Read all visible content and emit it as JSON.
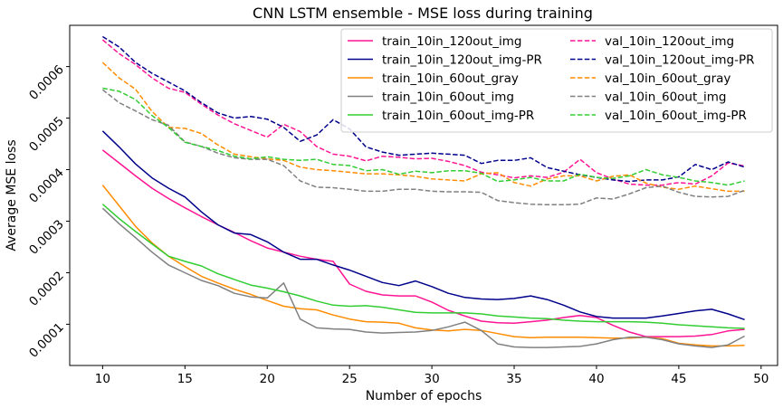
{
  "chart_data": {
    "type": "line",
    "title": "CNN LSTM ensemble - MSE loss during training",
    "xlabel": "Number of epochs",
    "ylabel": "Average MSE loss",
    "xlim": [
      8,
      51
    ],
    "ylim": [
      2e-05,
      0.00068
    ],
    "xticks": [
      10,
      15,
      20,
      25,
      30,
      35,
      40,
      45,
      50
    ],
    "yticks": [
      0.0001,
      0.0002,
      0.0003,
      0.0004,
      0.0005,
      0.0006
    ],
    "xtick_labels": [
      "10",
      "15",
      "20",
      "25",
      "30",
      "35",
      "40",
      "45",
      "50"
    ],
    "ytick_labels": [
      "0.0001",
      "0.0002",
      "0.0003",
      "0.0004",
      "0.0005",
      "0.0006"
    ],
    "grid": false,
    "legend": {
      "placement": "top-right",
      "columns": 2
    },
    "x": [
      10,
      11,
      12,
      13,
      14,
      15,
      16,
      17,
      18,
      19,
      20,
      21,
      22,
      23,
      24,
      25,
      26,
      27,
      28,
      29,
      30,
      31,
      32,
      33,
      34,
      35,
      36,
      37,
      38,
      39,
      40,
      41,
      42,
      43,
      44,
      45,
      46,
      47,
      48,
      49
    ],
    "series": [
      {
        "name": "train_10in_120out_img",
        "color": "#ff1493",
        "dash": "solid",
        "values": [
          0.000438,
          0.000413,
          0.000388,
          0.000364,
          0.000344,
          0.000326,
          0.000309,
          0.000293,
          0.000278,
          0.000262,
          0.000248,
          0.00024,
          0.000232,
          0.000226,
          0.000222,
          0.000178,
          0.000164,
          0.000157,
          0.000155,
          0.000155,
          0.000143,
          0.000127,
          0.000116,
          0.000106,
          0.000103,
          0.000102,
          0.000105,
          0.000108,
          0.000113,
          0.000117,
          0.000113,
          9.8e-05,
          8.5e-05,
          7.6e-05,
          7.6e-05,
          7.6e-05,
          7.7e-05,
          8e-05,
          8.7e-05,
          9e-05
        ]
      },
      {
        "name": "train_10in_120out_img-PR",
        "color": "#00008b",
        "dash": "solid",
        "values": [
          0.000475,
          0.000444,
          0.000411,
          0.000384,
          0.000364,
          0.000347,
          0.000318,
          0.000293,
          0.000277,
          0.000274,
          0.00026,
          0.00024,
          0.000226,
          0.000226,
          0.000215,
          0.000205,
          0.000193,
          0.000181,
          0.000175,
          0.000184,
          0.000173,
          0.00016,
          0.000152,
          0.000149,
          0.000148,
          0.00015,
          0.000155,
          0.000148,
          0.000137,
          0.000124,
          0.000115,
          0.000112,
          0.000112,
          0.000112,
          0.000116,
          0.000121,
          0.000126,
          0.000129,
          0.00012,
          0.000109
        ]
      },
      {
        "name": "train_10in_60out_gray",
        "color": "#ff8c00",
        "dash": "solid",
        "values": [
          0.00037,
          0.00033,
          0.00029,
          0.000258,
          0.000232,
          0.000212,
          0.000193,
          0.00018,
          0.000168,
          0.000158,
          0.000146,
          0.000135,
          0.00013,
          0.000128,
          0.000118,
          0.00011,
          0.000105,
          0.000104,
          0.000102,
          9.3e-05,
          8.9e-05,
          8.7e-05,
          9e-05,
          8.8e-05,
          8.2e-05,
          7.6e-05,
          7.4e-05,
          7.5e-05,
          7.5e-05,
          7.5e-05,
          7.4e-05,
          7.3e-05,
          7.3e-05,
          7.5e-05,
          7.2e-05,
          6.3e-05,
          6e-05,
          5.8e-05,
          5.8e-05,
          5.9e-05
        ]
      },
      {
        "name": "train_10in_60out_img",
        "color": "#808080",
        "dash": "solid",
        "values": [
          0.000325,
          0.000295,
          0.000268,
          0.00024,
          0.000215,
          0.0002,
          0.000185,
          0.000175,
          0.00016,
          0.000153,
          0.000151,
          0.00018,
          0.00011,
          9.3e-05,
          9.1e-05,
          9e-05,
          8.5e-05,
          8.3e-05,
          8.4e-05,
          8.5e-05,
          8.8e-05,
          9.5e-05,
          0.000104,
          8.8e-05,
          6.2e-05,
          5.6e-05,
          5.5e-05,
          5.5e-05,
          5.6e-05,
          5.7e-05,
          6.2e-05,
          7e-05,
          7.5e-05,
          7.5e-05,
          7e-05,
          6.2e-05,
          5.8e-05,
          5.5e-05,
          6e-05,
          7.7e-05
        ]
      },
      {
        "name": "train_10in_60out_img-PR",
        "color": "#32cd32",
        "dash": "solid",
        "values": [
          0.000333,
          0.000305,
          0.00028,
          0.000256,
          0.000232,
          0.000222,
          0.000213,
          0.000198,
          0.000187,
          0.000176,
          0.00017,
          0.000163,
          0.000155,
          0.000145,
          0.000137,
          0.000135,
          0.000136,
          0.000133,
          0.000128,
          0.000123,
          0.000122,
          0.000122,
          0.000122,
          0.00012,
          0.000116,
          0.000114,
          0.000112,
          0.000111,
          0.000108,
          0.000106,
          0.000105,
          0.000105,
          0.000105,
          0.000104,
          0.000102,
          9.9e-05,
          9.7e-05,
          9.5e-05,
          9.3e-05,
          9.2e-05
        ]
      },
      {
        "name": "val_10in_120out_img",
        "color": "#ff1493",
        "dash": "dashed",
        "values": [
          0.000652,
          0.000625,
          0.000604,
          0.000578,
          0.000558,
          0.00055,
          0.000527,
          0.000506,
          0.000489,
          0.000476,
          0.000463,
          0.000488,
          0.000474,
          0.000445,
          0.00043,
          0.000426,
          0.000417,
          0.000426,
          0.000424,
          0.000421,
          0.000422,
          0.000416,
          0.000408,
          0.000395,
          0.00039,
          0.000384,
          0.000388,
          0.000385,
          0.000395,
          0.00042,
          0.000394,
          0.000382,
          0.000372,
          0.00037,
          0.00037,
          0.000375,
          0.000372,
          0.000388,
          0.000413,
          0.000407
        ]
      },
      {
        "name": "val_10in_120out_img-PR",
        "color": "#00008b",
        "dash": "dashed",
        "values": [
          0.000658,
          0.000638,
          0.000608,
          0.000587,
          0.00057,
          0.000553,
          0.00053,
          0.00051,
          0.0005,
          0.000503,
          0.000498,
          0.000482,
          0.000455,
          0.000467,
          0.000497,
          0.000479,
          0.000444,
          0.000434,
          0.000428,
          0.00043,
          0.000432,
          0.00043,
          0.000428,
          0.000412,
          0.000418,
          0.000418,
          0.000423,
          0.000404,
          0.000397,
          0.00039,
          0.000385,
          0.00038,
          0.000377,
          0.00038,
          0.00038,
          0.000386,
          0.00041,
          0.0004,
          0.000415,
          0.000405
        ]
      },
      {
        "name": "val_10in_60out_gray",
        "color": "#ff8c00",
        "dash": "dashed",
        "values": [
          0.000608,
          0.000578,
          0.000556,
          0.000513,
          0.000482,
          0.00048,
          0.00047,
          0.000448,
          0.00043,
          0.000425,
          0.000421,
          0.000418,
          0.000405,
          0.0004,
          0.000398,
          0.000395,
          0.000392,
          0.000392,
          0.00039,
          0.000387,
          0.000382,
          0.00038,
          0.000378,
          0.000392,
          0.000394,
          0.000375,
          0.000368,
          0.000382,
          0.000388,
          0.000388,
          0.000378,
          0.000387,
          0.00039,
          0.000374,
          0.000366,
          0.000362,
          0.000368,
          0.000363,
          0.000358,
          0.000358
        ]
      },
      {
        "name": "val_10in_60out_img",
        "color": "#808080",
        "dash": "dashed",
        "values": [
          0.000555,
          0.00053,
          0.000514,
          0.000497,
          0.000486,
          0.000454,
          0.000445,
          0.000432,
          0.000423,
          0.00042,
          0.00042,
          0.000408,
          0.000378,
          0.000366,
          0.000365,
          0.000362,
          0.000358,
          0.000358,
          0.000362,
          0.000362,
          0.000358,
          0.000357,
          0.000357,
          0.000356,
          0.00034,
          0.000336,
          0.000333,
          0.000332,
          0.000332,
          0.000333,
          0.000345,
          0.000343,
          0.000353,
          0.000365,
          0.000368,
          0.000356,
          0.000348,
          0.000347,
          0.000348,
          0.00036
        ]
      },
      {
        "name": "val_10in_60out_img-PR",
        "color": "#32cd32",
        "dash": "dashed",
        "values": [
          0.000558,
          0.000552,
          0.000536,
          0.000505,
          0.000482,
          0.000453,
          0.000445,
          0.000437,
          0.000426,
          0.000421,
          0.000425,
          0.00042,
          0.000418,
          0.00042,
          0.00041,
          0.000408,
          0.000398,
          0.0004,
          0.000391,
          0.000397,
          0.000394,
          0.000398,
          0.000398,
          0.000393,
          0.000377,
          0.00038,
          0.000385,
          0.000378,
          0.000378,
          0.000391,
          0.000385,
          0.000383,
          0.000388,
          0.0004,
          0.00039,
          0.000385,
          0.000378,
          0.000375,
          0.00037,
          0.000378
        ]
      }
    ]
  }
}
